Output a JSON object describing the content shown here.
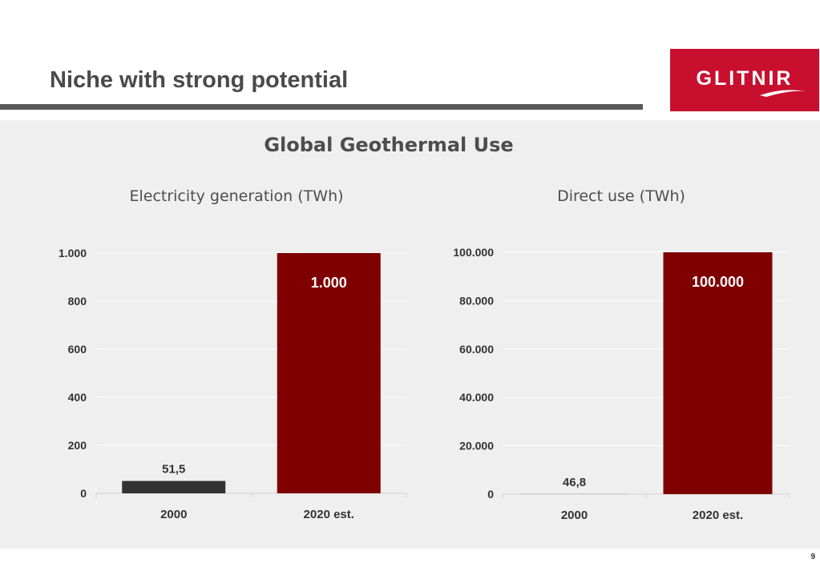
{
  "slide": {
    "title": "Niche with strong potential",
    "page_number": "9",
    "logo_text": "GLITNIR",
    "panel_title": "Global Geothermal Use"
  },
  "colors": {
    "brand_red": "#c8102e",
    "bar_2020": "#7f0000",
    "bar_2000": "#333333"
  },
  "chart_data": [
    {
      "type": "bar",
      "title": "Electricity generation (TWh)",
      "categories": [
        "2000",
        "2020 est."
      ],
      "values": [
        51.5,
        1000
      ],
      "value_labels": [
        "51,5",
        "1.000"
      ],
      "ylim": [
        0,
        1000
      ],
      "yticks": [
        0,
        200,
        400,
        600,
        800,
        1000
      ],
      "ytick_labels": [
        "0",
        "200",
        "400",
        "600",
        "800",
        "1.000"
      ],
      "bar_colors": [
        "#333333",
        "#7f0000"
      ],
      "grid": true
    },
    {
      "type": "bar",
      "title": "Direct use (TWh)",
      "categories": [
        "2000",
        "2020 est."
      ],
      "values": [
        46.8,
        100000
      ],
      "value_labels": [
        "46,8",
        "100.000"
      ],
      "ylim": [
        0,
        100000
      ],
      "yticks": [
        0,
        20000,
        40000,
        60000,
        80000,
        100000
      ],
      "ytick_labels": [
        "0",
        "20.000",
        "40.000",
        "60.000",
        "80.000",
        "100.000"
      ],
      "bar_colors": [
        "#333333",
        "#7f0000"
      ],
      "grid": true
    }
  ]
}
